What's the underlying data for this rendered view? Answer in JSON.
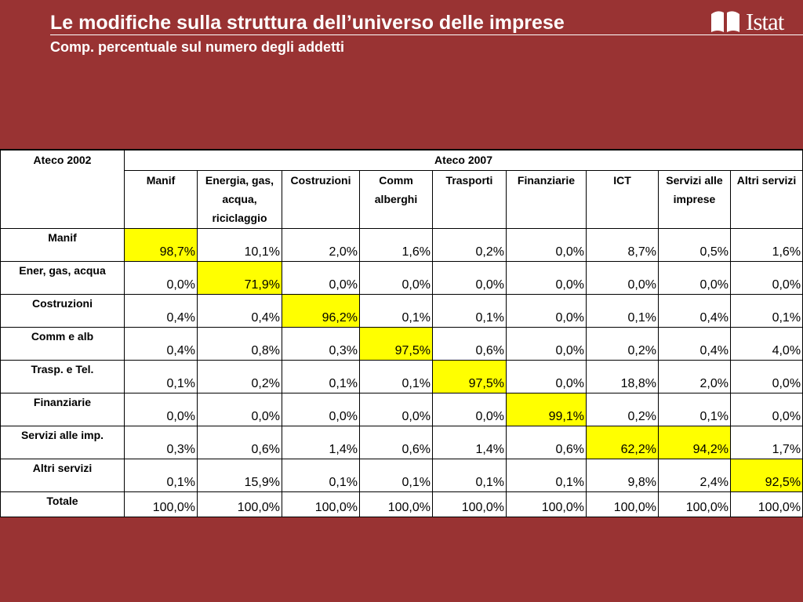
{
  "header": {
    "title": "Le modifiche sulla struttura dell’universo delle imprese",
    "subtitle": "Comp. percentuale sul numero degli addetti",
    "logo_text": "Istat"
  },
  "table": {
    "corner_label": "Ateco 2002",
    "group_label": "Ateco 2007",
    "columns": [
      "Manif",
      "Energia, gas, acqua, riciclaggio",
      "Costruzioni",
      "Comm alberghi",
      "Trasporti",
      "Finanziarie",
      "ICT",
      "Servizi alle imprese",
      "Altri servizi"
    ],
    "highlight_color": "#ffff00",
    "rows": [
      {
        "label": "Manif",
        "values": [
          "98,7%",
          "10,1%",
          "2,0%",
          "1,6%",
          "0,2%",
          "0,0%",
          "8,7%",
          "0,5%",
          "1,6%"
        ],
        "highlight": [
          0
        ]
      },
      {
        "label": "Ener, gas, acqua",
        "values": [
          "0,0%",
          "71,9%",
          "0,0%",
          "0,0%",
          "0,0%",
          "0,0%",
          "0,0%",
          "0,0%",
          "0,0%"
        ],
        "highlight": [
          1
        ]
      },
      {
        "label": "Costruzioni",
        "values": [
          "0,4%",
          "0,4%",
          "96,2%",
          "0,1%",
          "0,1%",
          "0,0%",
          "0,1%",
          "0,4%",
          "0,1%"
        ],
        "highlight": [
          2
        ]
      },
      {
        "label": "Comm e alb",
        "values": [
          "0,4%",
          "0,8%",
          "0,3%",
          "97,5%",
          "0,6%",
          "0,0%",
          "0,2%",
          "0,4%",
          "4,0%"
        ],
        "highlight": [
          3
        ]
      },
      {
        "label": "Trasp. e Tel.",
        "values": [
          "0,1%",
          "0,2%",
          "0,1%",
          "0,1%",
          "97,5%",
          "0,0%",
          "18,8%",
          "2,0%",
          "0,0%"
        ],
        "highlight": [
          4
        ]
      },
      {
        "label": "Finanziarie",
        "values": [
          "0,0%",
          "0,0%",
          "0,0%",
          "0,0%",
          "0,0%",
          "99,1%",
          "0,2%",
          "0,1%",
          "0,0%"
        ],
        "highlight": [
          5
        ]
      },
      {
        "label": "Servizi alle imp.",
        "values": [
          "0,3%",
          "0,6%",
          "1,4%",
          "0,6%",
          "1,4%",
          "0,6%",
          "62,2%",
          "94,2%",
          "1,7%"
        ],
        "highlight": [
          6,
          7
        ]
      },
      {
        "label": "Altri servizi",
        "values": [
          "0,1%",
          "15,9%",
          "0,1%",
          "0,1%",
          "0,1%",
          "0,1%",
          "9,8%",
          "2,4%",
          "92,5%"
        ],
        "highlight": [
          8
        ]
      },
      {
        "label": "Totale",
        "values": [
          "100,0%",
          "100,0%",
          "100,0%",
          "100,0%",
          "100,0%",
          "100,0%",
          "100,0%",
          "100,0%",
          "100,0%"
        ],
        "highlight": []
      }
    ]
  }
}
